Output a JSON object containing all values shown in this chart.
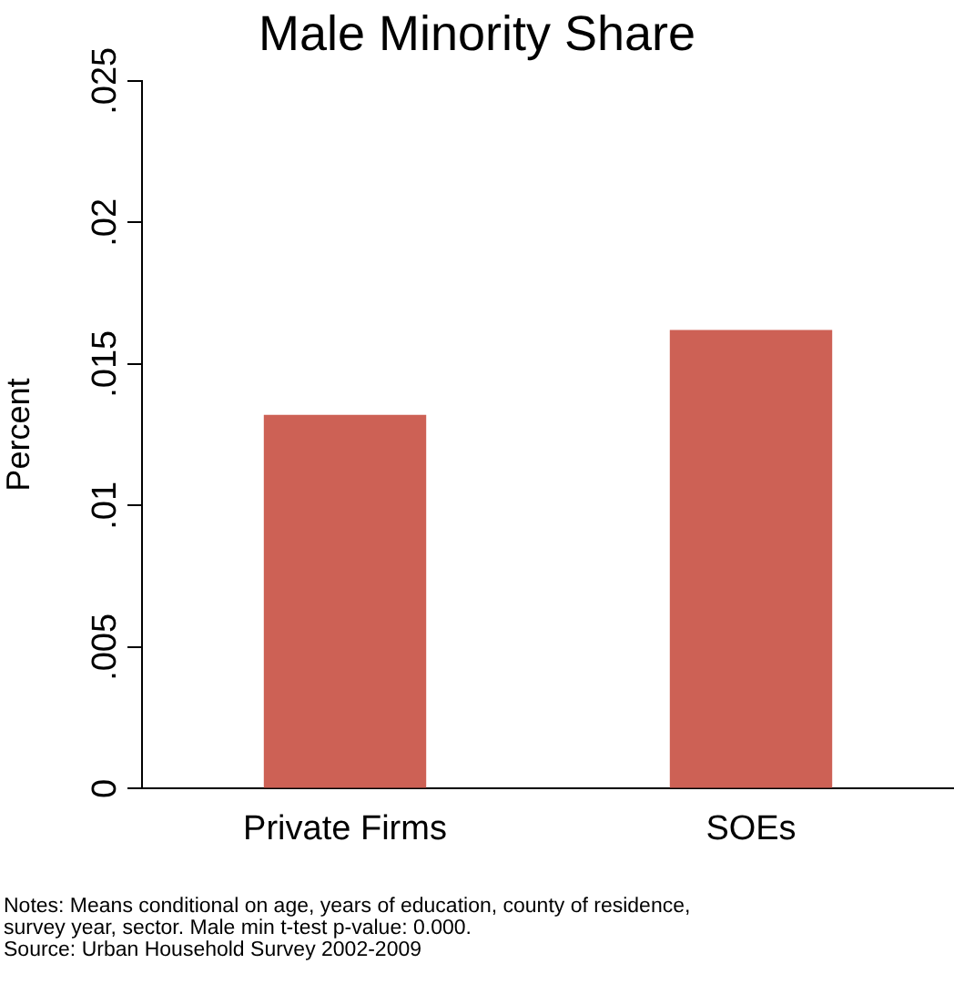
{
  "chart_data": {
    "type": "bar",
    "title": "Male Minority Share",
    "ylabel": "Percent",
    "categories": [
      "Private Firms",
      "SOEs"
    ],
    "series": [
      {
        "color": "#cd6155",
        "values": [
          0.0132,
          0.0162
        ]
      }
    ],
    "ylim": [
      0,
      0.025
    ],
    "yticks": [
      0,
      {
        "value": 0.005,
        "label": ".005"
      },
      {
        "value": 0.01,
        "label": ".01"
      },
      {
        "value": 0.015,
        "label": ".015"
      },
      {
        "value": 0.02,
        "label": ".02"
      },
      {
        "value": 0.025,
        "label": ".025"
      }
    ],
    "grid": false,
    "legend": false,
    "annotations": [
      "Notes: Means conditional on age, years of education, county of residence,",
      "survey year, sector. Male min t-test p-value: 0.000.",
      "Source: Urban Household Survey 2002-2009"
    ]
  }
}
